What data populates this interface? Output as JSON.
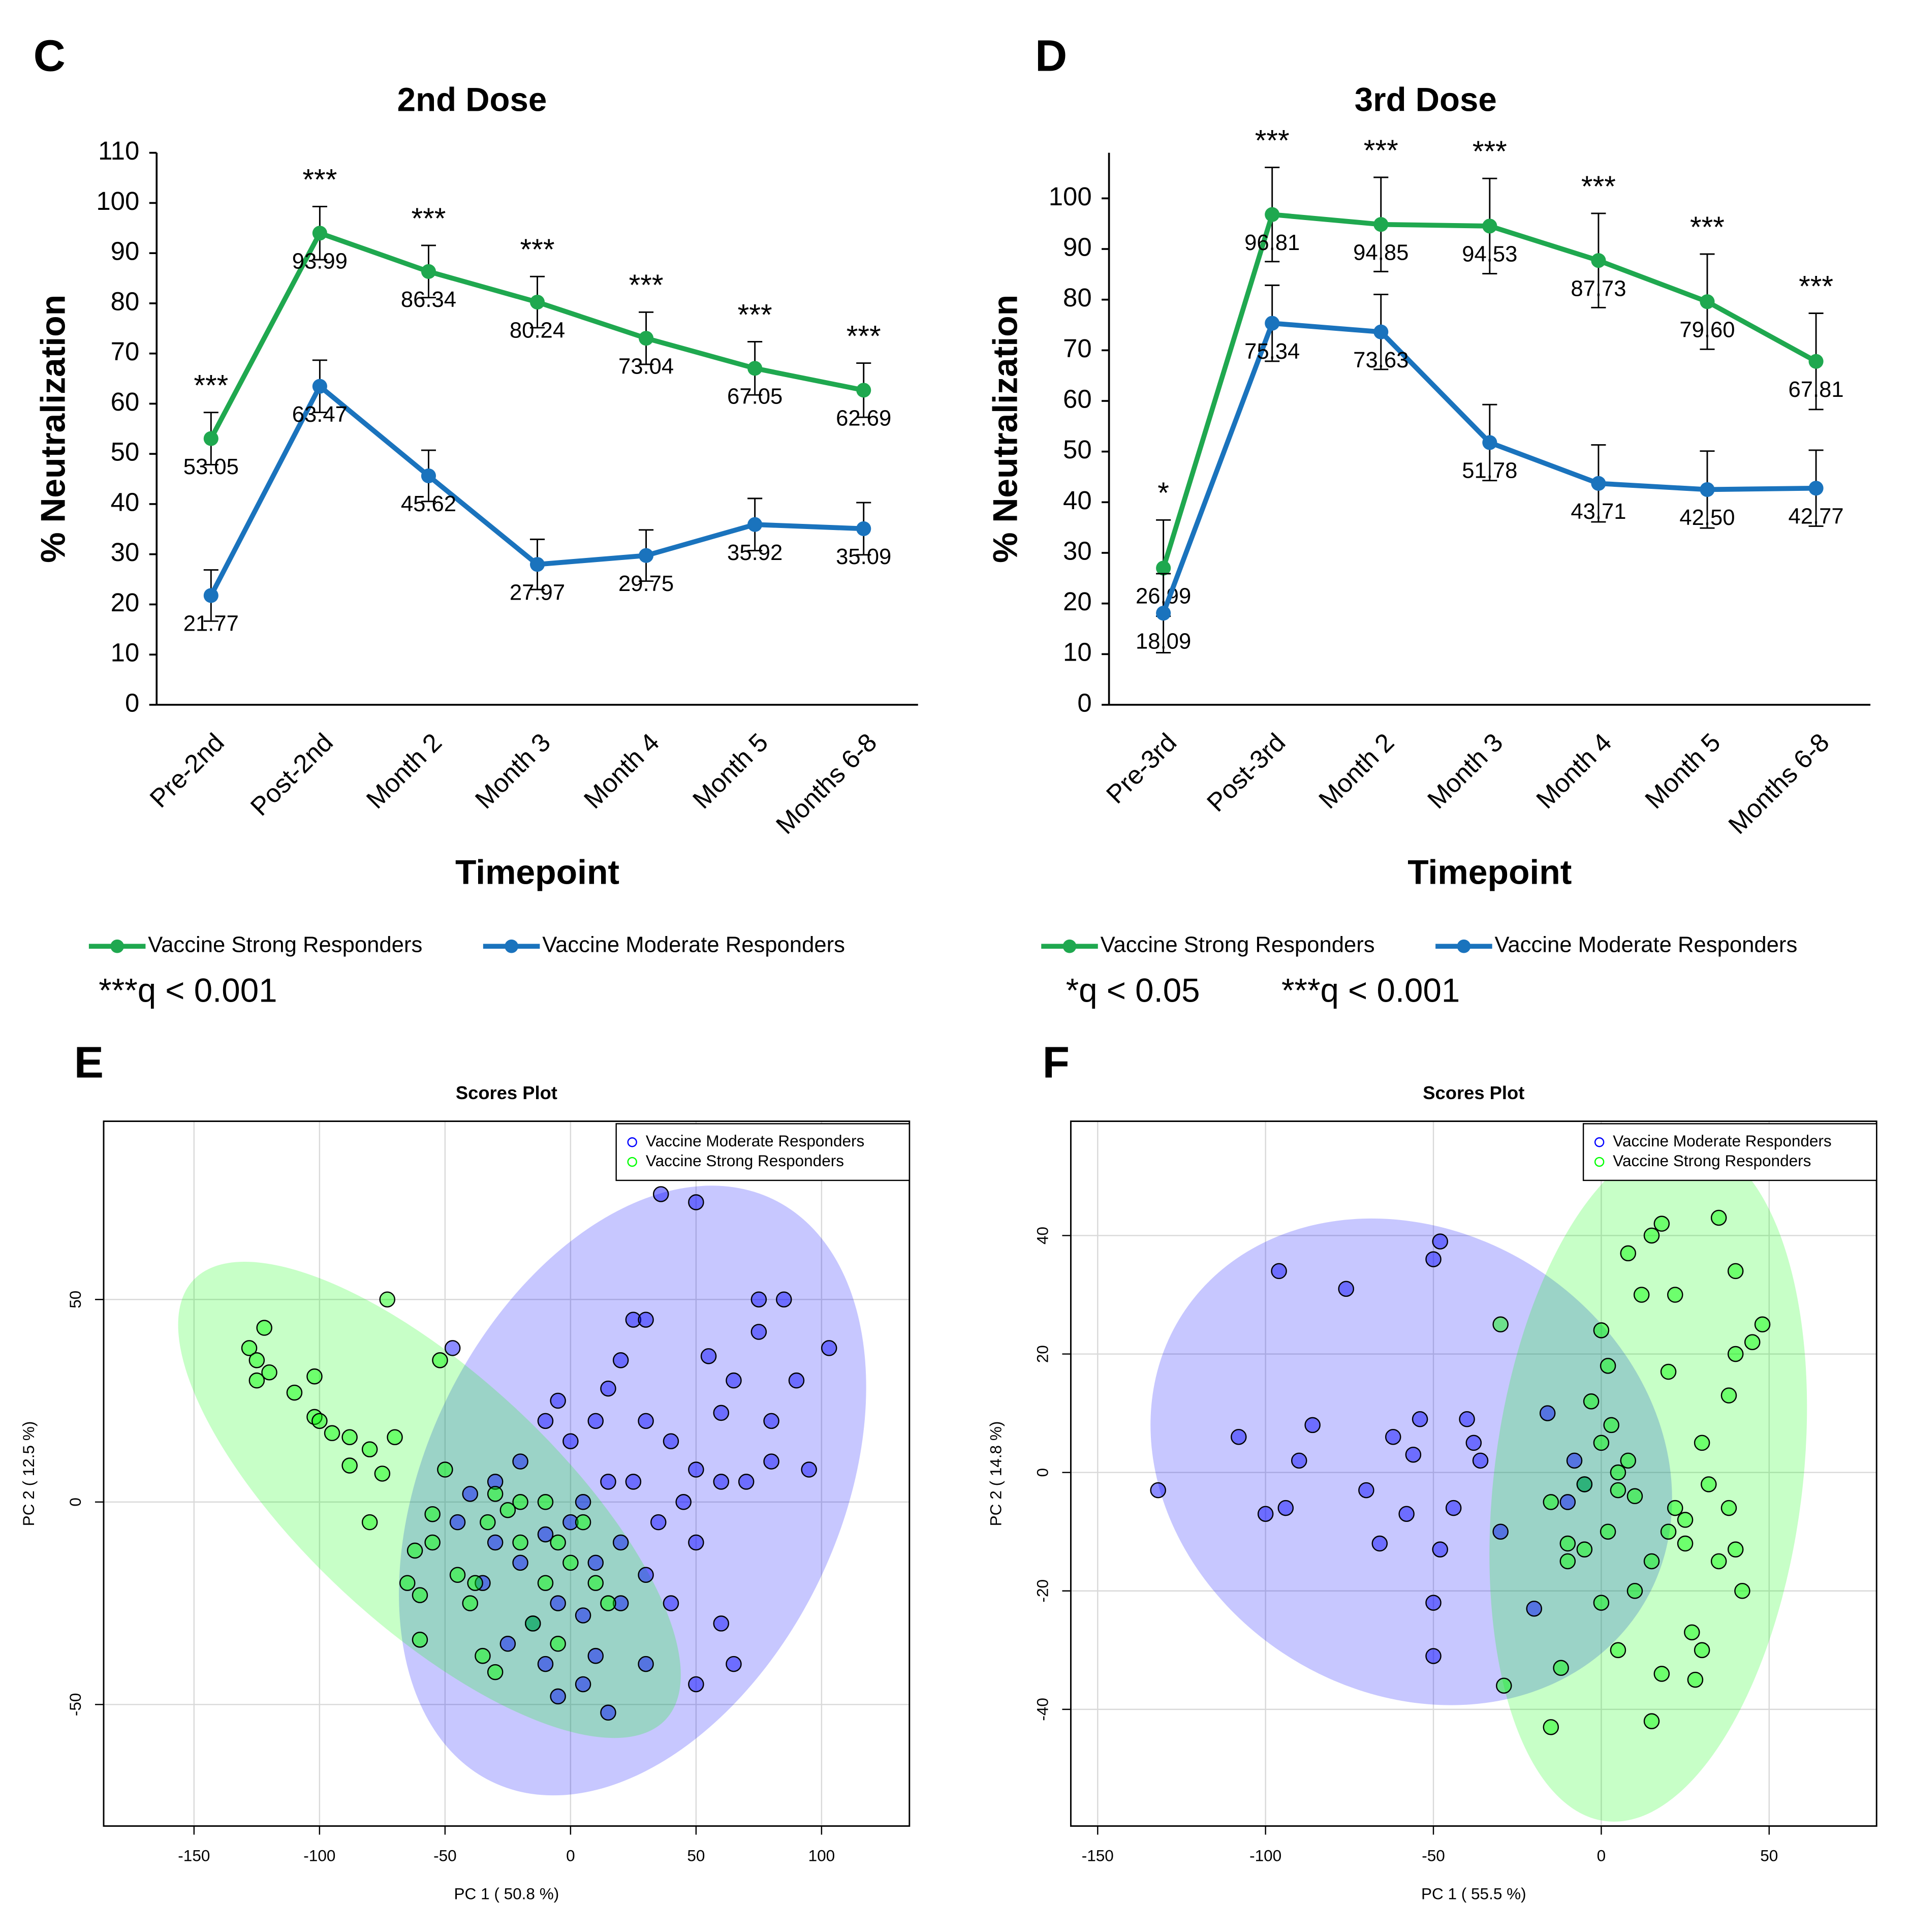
{
  "chart_data": [
    {
      "type": "line",
      "panel": "C",
      "title": "2nd Dose",
      "xlabel": "Timepoint",
      "ylabel": "% Neutralization",
      "categories": [
        "Pre-2nd",
        "Post-2nd",
        "Month 2",
        "Month 3",
        "Month 4",
        "Month 5",
        "Months 6-8"
      ],
      "ylim": [
        0,
        110
      ],
      "yticks": [
        0,
        10,
        20,
        30,
        40,
        50,
        60,
        70,
        80,
        90,
        100,
        110
      ],
      "series": [
        {
          "name": "Vaccine Strong Responders",
          "color": "#1fa84f",
          "values": [
            53.05,
            93.99,
            86.34,
            80.24,
            73.04,
            67.05,
            62.69
          ],
          "errors": [
            5.2,
            5.3,
            5.2,
            5.1,
            5.2,
            5.3,
            5.4
          ]
        },
        {
          "name": "Vaccine Moderate Responders",
          "color": "#1a73bd",
          "values": [
            21.77,
            63.47,
            45.62,
            27.97,
            29.75,
            35.92,
            35.09
          ],
          "errors": [
            5.1,
            5.2,
            5.1,
            5.0,
            5.1,
            5.2,
            5.2
          ]
        }
      ],
      "significance": [
        "***",
        "***",
        "***",
        "***",
        "***",
        "***",
        "***"
      ],
      "notes": [
        "***q < 0.001"
      ]
    },
    {
      "type": "line",
      "panel": "D",
      "title": "3rd Dose",
      "xlabel": "Timepoint",
      "ylabel": "% Neutralization",
      "categories": [
        "Pre-3rd",
        "Post-3rd",
        "Month 2",
        "Month 3",
        "Month 4",
        "Month 5",
        "Months 6-8"
      ],
      "ylim": [
        0,
        109
      ],
      "yticks": [
        0,
        10,
        20,
        30,
        40,
        50,
        60,
        70,
        80,
        90,
        100
      ],
      "series": [
        {
          "name": "Vaccine Strong Responders",
          "color": "#1fa84f",
          "values": [
            26.99,
            96.81,
            94.85,
            94.53,
            87.73,
            79.6,
            67.81
          ],
          "value_labels": [
            "26.99",
            "96.81",
            "94.85",
            "94.53",
            "87.73",
            "79.60",
            "67.81"
          ],
          "errors": [
            9.5,
            9.3,
            9.3,
            9.4,
            9.3,
            9.4,
            9.5
          ]
        },
        {
          "name": "Vaccine Moderate Responders",
          "color": "#1a73bd",
          "values": [
            18.09,
            75.34,
            73.63,
            51.78,
            43.71,
            42.5,
            42.77
          ],
          "value_labels": [
            "18.09",
            "75.34",
            "73.63",
            "51.78",
            "43.71",
            "42.50",
            "42.77"
          ],
          "errors": [
            7.8,
            7.5,
            7.4,
            7.5,
            7.6,
            7.6,
            7.5
          ]
        }
      ],
      "significance": [
        "*",
        "***",
        "***",
        "***",
        "***",
        "***",
        "***"
      ],
      "notes": [
        "*q < 0.05",
        "***q < 0.001"
      ]
    },
    {
      "type": "scatter",
      "panel": "E",
      "title": "Scores Plot",
      "xlabel": "PC 1 ( 50.8 %)",
      "ylabel": "PC 2 ( 12.5 %)",
      "xlim": [
        -186,
        135
      ],
      "ylim": [
        -80,
        94
      ],
      "xticks": [
        -150,
        -100,
        -50,
        0,
        50,
        100
      ],
      "yticks": [
        -50,
        0,
        50
      ],
      "grid": true,
      "legend": "top-right",
      "series": [
        {
          "name": "Vaccine Moderate Responders",
          "color": "#0000ff",
          "x": [
            36,
            50,
            103,
            85,
            75,
            75,
            55,
            65,
            60,
            80,
            90,
            95,
            80,
            70,
            50,
            40,
            30,
            20,
            25,
            30,
            15,
            10,
            0,
            -5,
            -10,
            -20,
            -30,
            -40,
            -45,
            -30,
            -20,
            -10,
            0,
            5,
            10,
            20,
            30,
            40,
            50,
            60,
            65,
            50,
            30,
            15,
            5,
            -5,
            -10,
            -25,
            10,
            -47,
            35,
            45,
            60,
            25,
            15,
            -5,
            5,
            20,
            -15,
            -35
          ],
          "y": [
            76,
            74,
            38,
            50,
            50,
            42,
            36,
            30,
            22,
            20,
            30,
            8,
            10,
            5,
            8,
            15,
            20,
            35,
            45,
            45,
            28,
            20,
            15,
            25,
            20,
            10,
            5,
            2,
            -5,
            -10,
            -15,
            -8,
            -5,
            0,
            -15,
            -10,
            -18,
            -25,
            -10,
            -30,
            -40,
            -45,
            -40,
            -52,
            -45,
            -48,
            -40,
            -35,
            -38,
            38,
            -5,
            0,
            5,
            5,
            5,
            -25,
            -28,
            -25,
            -30,
            -20
          ]
        },
        {
          "name": "Vaccine Strong Responders",
          "color": "#00ff00",
          "x": [
            -128,
            -125,
            -122,
            -120,
            -125,
            -110,
            -102,
            -100,
            -95,
            -88,
            -102,
            -73,
            -52,
            -70,
            -80,
            -75,
            -88,
            -80,
            -65,
            -62,
            -60,
            -55,
            -50,
            -55,
            -40,
            -38,
            -33,
            -25,
            -20,
            -15,
            -10,
            0,
            5,
            10,
            15,
            -5,
            -35,
            -60,
            -30,
            -5,
            -20,
            -30,
            -45,
            -10
          ],
          "y": [
            38,
            35,
            43,
            32,
            30,
            27,
            21,
            20,
            17,
            16,
            31,
            50,
            35,
            16,
            13,
            7,
            9,
            -5,
            -20,
            -12,
            -23,
            -10,
            8,
            -3,
            -25,
            -20,
            -5,
            -2,
            -10,
            -30,
            -20,
            -15,
            -5,
            -20,
            -25,
            -35,
            -38,
            -34,
            -42,
            -10,
            0,
            2,
            -18,
            0
          ]
        }
      ]
    },
    {
      "type": "scatter",
      "panel": "F",
      "title": "Scores Plot",
      "xlabel": "PC 1 ( 55.5 %)",
      "ylabel": "PC 2 ( 14.8 %)",
      "xlim": [
        -158,
        82
      ],
      "ylim": [
        -59.7,
        59.3
      ],
      "xticks": [
        -150,
        -100,
        -50,
        0,
        50
      ],
      "yticks": [
        -40,
        -20,
        0,
        20,
        40
      ],
      "grid": true,
      "legend": "top-right",
      "series": [
        {
          "name": "Vaccine Moderate Responders",
          "color": "#0000ff",
          "x": [
            -132,
            -108,
            -100,
            -96,
            -94,
            -90,
            -86,
            -76,
            -70,
            -66,
            -62,
            -56,
            -58,
            -54,
            -50,
            -48,
            -50,
            -50,
            -48,
            -44,
            -40,
            -38,
            -36,
            -30,
            -16,
            -10,
            -5,
            -20,
            -8
          ],
          "y": [
            -3,
            6,
            -7,
            34,
            -6,
            2,
            8,
            31,
            -3,
            -12,
            6,
            3,
            -7,
            9,
            36,
            39,
            -22,
            -31,
            -13,
            -6,
            9,
            5,
            2,
            -10,
            10,
            -5,
            -2,
            -23,
            2
          ]
        },
        {
          "name": "Vaccine Strong Responders",
          "color": "#00ff00",
          "x": [
            -30,
            -29,
            -15,
            -12,
            -10,
            -5,
            0,
            2,
            3,
            5,
            8,
            10,
            12,
            15,
            18,
            20,
            22,
            25,
            27,
            30,
            32,
            35,
            38,
            40,
            40,
            42,
            45,
            48,
            40,
            35,
            30,
            25,
            20,
            15,
            10,
            5,
            0,
            -5,
            -10,
            -15,
            2,
            5,
            8,
            18,
            15,
            0,
            -3,
            28,
            38,
            22
          ],
          "y": [
            25,
            -36,
            -43,
            -33,
            -12,
            -2,
            5,
            18,
            8,
            0,
            37,
            -4,
            30,
            40,
            42,
            17,
            -6,
            -12,
            -27,
            -30,
            -2,
            43,
            -6,
            20,
            34,
            -20,
            22,
            25,
            -13,
            -15,
            5,
            -8,
            -10,
            -15,
            -20,
            -30,
            -22,
            -13,
            -15,
            -5,
            -10,
            -3,
            2,
            -34,
            -42,
            24,
            12,
            -35,
            13,
            30
          ]
        }
      ]
    }
  ]
}
